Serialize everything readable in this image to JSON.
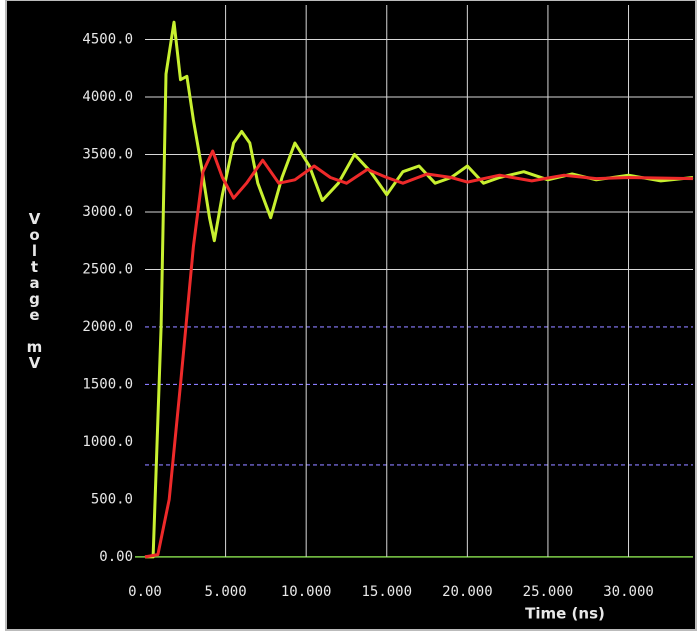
{
  "chart_data": {
    "type": "line",
    "x_label": "Time (ns)",
    "y_label": "Voltage mV",
    "xlim": [
      0,
      34
    ],
    "ylim": [
      -100,
      4800
    ],
    "xticks": [
      {
        "value": 0,
        "label": "0.00"
      },
      {
        "value": 5,
        "label": "5.000"
      },
      {
        "value": 10,
        "label": "10.000"
      },
      {
        "value": 15,
        "label": "15.000"
      },
      {
        "value": 20,
        "label": "20.000"
      },
      {
        "value": 25,
        "label": "25.000"
      },
      {
        "value": 30,
        "label": "30.000"
      }
    ],
    "yticks": [
      {
        "value": 0,
        "label": "0.00"
      },
      {
        "value": 500,
        "label": "500.0"
      },
      {
        "value": 1000,
        "label": "1000.0"
      },
      {
        "value": 1500,
        "label": "1500.0"
      },
      {
        "value": 2000,
        "label": "2000.0"
      },
      {
        "value": 2500,
        "label": "2500.0"
      },
      {
        "value": 3000,
        "label": "3000.0"
      },
      {
        "value": 3500,
        "label": "3500.0"
      },
      {
        "value": 4000,
        "label": "4000.0"
      },
      {
        "value": 4500,
        "label": "4500.0"
      }
    ],
    "grid": true,
    "grid_color": "#d8d8d8",
    "thresholds": [
      800,
      1500,
      2000
    ],
    "threshold_color": "#8a7cff",
    "series": [
      {
        "color": "#c8f030",
        "x": [
          0,
          0.5,
          1.0,
          1.3,
          1.8,
          2.2,
          2.6,
          3.0,
          3.5,
          4.0,
          4.3,
          4.8,
          5.5,
          6.0,
          6.5,
          7.0,
          7.8,
          8.5,
          9.3,
          10.2,
          11.0,
          12.0,
          13.0,
          14.0,
          15.0,
          16.0,
          17.0,
          18.0,
          19.0,
          20.0,
          21.0,
          22.0,
          23.5,
          25.0,
          26.5,
          28.0,
          30.0,
          32.0,
          34.0
        ],
        "values": [
          0,
          0,
          2000,
          4200,
          4650,
          4150,
          4180,
          3800,
          3400,
          2950,
          2750,
          3150,
          3600,
          3700,
          3600,
          3250,
          2950,
          3300,
          3600,
          3400,
          3100,
          3250,
          3500,
          3350,
          3150,
          3350,
          3400,
          3250,
          3300,
          3400,
          3250,
          3300,
          3350,
          3280,
          3330,
          3280,
          3320,
          3270,
          3300
        ]
      },
      {
        "color": "#ee2a2a",
        "x": [
          0,
          0.8,
          1.5,
          2.2,
          3.0,
          3.6,
          4.2,
          4.8,
          5.5,
          6.3,
          7.3,
          8.3,
          9.3,
          10.5,
          11.5,
          12.5,
          13.8,
          15.0,
          16.0,
          17.5,
          19.0,
          20.0,
          22.0,
          24.0,
          26.0,
          28.0,
          30.0,
          34.0
        ],
        "values": [
          0,
          20,
          500,
          1500,
          2700,
          3350,
          3530,
          3300,
          3120,
          3250,
          3450,
          3250,
          3280,
          3400,
          3300,
          3250,
          3370,
          3300,
          3250,
          3330,
          3300,
          3260,
          3320,
          3270,
          3320,
          3290,
          3300,
          3290
        ]
      }
    ]
  }
}
